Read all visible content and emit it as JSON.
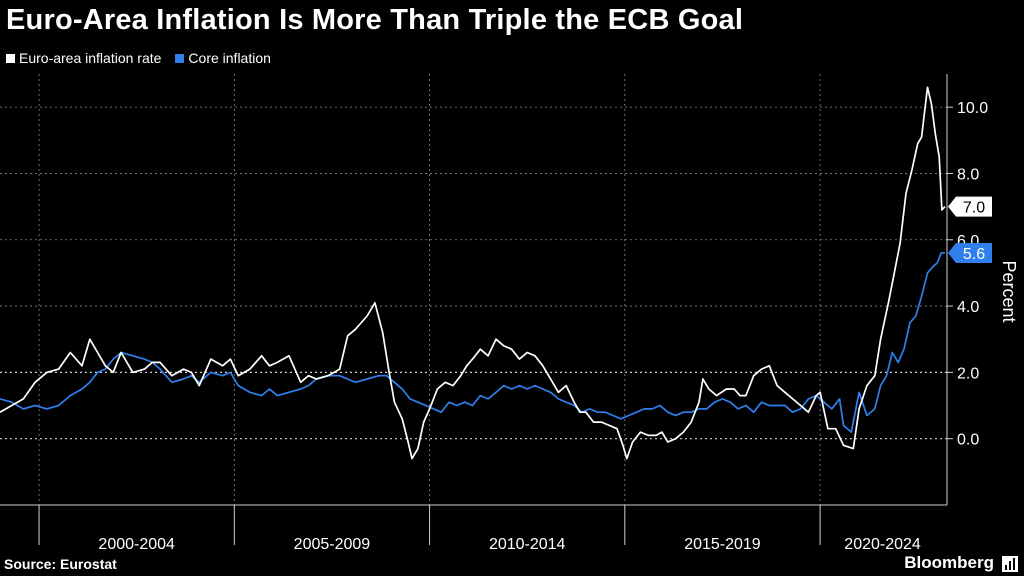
{
  "title": "Euro-Area Inflation Is More Than Triple the ECB Goal",
  "source": "Source: Eurostat",
  "brand": "Bloomberg",
  "colors": {
    "headline": "#ffffff",
    "core": "#2f80ed",
    "grid": "#8a8a8a",
    "axis": "#d0d0d0"
  },
  "chart_data": {
    "type": "line",
    "title": "Euro-Area Inflation Is More Than Triple the ECB Goal",
    "ylabel": "Percent",
    "xlabel": "",
    "xlim": [
      1999.0,
      2023.25
    ],
    "ylim": [
      -2.0,
      11.0
    ],
    "y_ticks": [
      0.0,
      2.0,
      4.0,
      6.0,
      8.0,
      10.0
    ],
    "y_tick_labels": [
      "0.0",
      "2.0",
      "4.0",
      "6.0",
      "8.0",
      "10.0"
    ],
    "x_boundaries": [
      2000,
      2005,
      2010,
      2015,
      2020
    ],
    "x_period_labels": [
      {
        "label": "2000-2004",
        "center": 2002.5
      },
      {
        "label": "2005-2009",
        "center": 2007.5
      },
      {
        "label": "2010-2014",
        "center": 2012.5
      },
      {
        "label": "2015-2019",
        "center": 2017.5
      },
      {
        "label": "2020-2024",
        "center": 2021.6
      }
    ],
    "series": [
      {
        "name": "Euro-area inflation rate",
        "last_label": "7.0",
        "points": [
          [
            1999.0,
            0.8
          ],
          [
            1999.3,
            1.0
          ],
          [
            1999.6,
            1.2
          ],
          [
            1999.9,
            1.7
          ],
          [
            2000.2,
            2.0
          ],
          [
            2000.5,
            2.1
          ],
          [
            2000.8,
            2.6
          ],
          [
            2001.1,
            2.2
          ],
          [
            2001.3,
            3.0
          ],
          [
            2001.5,
            2.6
          ],
          [
            2001.7,
            2.2
          ],
          [
            2001.9,
            2.0
          ],
          [
            2002.1,
            2.6
          ],
          [
            2002.4,
            2.0
          ],
          [
            2002.7,
            2.1
          ],
          [
            2002.9,
            2.3
          ],
          [
            2003.1,
            2.3
          ],
          [
            2003.4,
            1.9
          ],
          [
            2003.7,
            2.1
          ],
          [
            2003.9,
            2.0
          ],
          [
            2004.1,
            1.6
          ],
          [
            2004.4,
            2.4
          ],
          [
            2004.7,
            2.2
          ],
          [
            2004.9,
            2.4
          ],
          [
            2005.1,
            1.9
          ],
          [
            2005.4,
            2.1
          ],
          [
            2005.7,
            2.5
          ],
          [
            2005.9,
            2.2
          ],
          [
            2006.1,
            2.3
          ],
          [
            2006.4,
            2.5
          ],
          [
            2006.7,
            1.7
          ],
          [
            2006.9,
            1.9
          ],
          [
            2007.1,
            1.8
          ],
          [
            2007.4,
            1.9
          ],
          [
            2007.7,
            2.1
          ],
          [
            2007.9,
            3.1
          ],
          [
            2008.1,
            3.3
          ],
          [
            2008.4,
            3.7
          ],
          [
            2008.6,
            4.1
          ],
          [
            2008.8,
            3.2
          ],
          [
            2008.95,
            2.1
          ],
          [
            2009.1,
            1.1
          ],
          [
            2009.3,
            0.6
          ],
          [
            2009.45,
            -0.1
          ],
          [
            2009.55,
            -0.6
          ],
          [
            2009.7,
            -0.3
          ],
          [
            2009.85,
            0.5
          ],
          [
            2010.0,
            0.9
          ],
          [
            2010.2,
            1.5
          ],
          [
            2010.4,
            1.7
          ],
          [
            2010.6,
            1.6
          ],
          [
            2010.8,
            1.9
          ],
          [
            2010.95,
            2.2
          ],
          [
            2011.1,
            2.4
          ],
          [
            2011.3,
            2.7
          ],
          [
            2011.5,
            2.5
          ],
          [
            2011.7,
            3.0
          ],
          [
            2011.9,
            2.8
          ],
          [
            2012.1,
            2.7
          ],
          [
            2012.3,
            2.4
          ],
          [
            2012.5,
            2.6
          ],
          [
            2012.7,
            2.5
          ],
          [
            2012.9,
            2.2
          ],
          [
            2013.1,
            1.8
          ],
          [
            2013.3,
            1.4
          ],
          [
            2013.5,
            1.6
          ],
          [
            2013.7,
            1.1
          ],
          [
            2013.85,
            0.8
          ],
          [
            2014.0,
            0.8
          ],
          [
            2014.2,
            0.5
          ],
          [
            2014.4,
            0.5
          ],
          [
            2014.6,
            0.4
          ],
          [
            2014.8,
            0.3
          ],
          [
            2014.95,
            -0.2
          ],
          [
            2015.05,
            -0.6
          ],
          [
            2015.2,
            -0.1
          ],
          [
            2015.4,
            0.2
          ],
          [
            2015.6,
            0.1
          ],
          [
            2015.8,
            0.1
          ],
          [
            2015.95,
            0.2
          ],
          [
            2016.1,
            -0.1
          ],
          [
            2016.3,
            0.0
          ],
          [
            2016.5,
            0.2
          ],
          [
            2016.7,
            0.5
          ],
          [
            2016.9,
            1.1
          ],
          [
            2017.0,
            1.8
          ],
          [
            2017.15,
            1.5
          ],
          [
            2017.35,
            1.3
          ],
          [
            2017.6,
            1.5
          ],
          [
            2017.8,
            1.5
          ],
          [
            2017.95,
            1.3
          ],
          [
            2018.1,
            1.3
          ],
          [
            2018.3,
            1.9
          ],
          [
            2018.5,
            2.1
          ],
          [
            2018.7,
            2.2
          ],
          [
            2018.9,
            1.6
          ],
          [
            2019.1,
            1.4
          ],
          [
            2019.3,
            1.2
          ],
          [
            2019.5,
            1.0
          ],
          [
            2019.7,
            0.8
          ],
          [
            2019.9,
            1.3
          ],
          [
            2020.0,
            1.4
          ],
          [
            2020.2,
            0.3
          ],
          [
            2020.4,
            0.3
          ],
          [
            2020.6,
            -0.2
          ],
          [
            2020.85,
            -0.3
          ],
          [
            2021.0,
            0.9
          ],
          [
            2021.2,
            1.6
          ],
          [
            2021.4,
            1.9
          ],
          [
            2021.55,
            3.0
          ],
          [
            2021.75,
            4.1
          ],
          [
            2021.9,
            5.0
          ],
          [
            2022.05,
            5.9
          ],
          [
            2022.2,
            7.4
          ],
          [
            2022.35,
            8.1
          ],
          [
            2022.5,
            8.9
          ],
          [
            2022.6,
            9.1
          ],
          [
            2022.75,
            10.6
          ],
          [
            2022.85,
            10.1
          ],
          [
            2022.95,
            9.2
          ],
          [
            2023.05,
            8.5
          ],
          [
            2023.12,
            6.9
          ],
          [
            2023.2,
            7.0
          ]
        ]
      },
      {
        "name": "Core inflation",
        "last_label": "5.6",
        "points": [
          [
            1999.0,
            1.2
          ],
          [
            1999.3,
            1.1
          ],
          [
            1999.6,
            0.9
          ],
          [
            1999.9,
            1.0
          ],
          [
            2000.2,
            0.9
          ],
          [
            2000.5,
            1.0
          ],
          [
            2000.8,
            1.3
          ],
          [
            2001.1,
            1.5
          ],
          [
            2001.3,
            1.7
          ],
          [
            2001.5,
            2.0
          ],
          [
            2001.7,
            2.1
          ],
          [
            2001.9,
            2.4
          ],
          [
            2002.1,
            2.6
          ],
          [
            2002.4,
            2.5
          ],
          [
            2002.7,
            2.4
          ],
          [
            2002.9,
            2.3
          ],
          [
            2003.1,
            2.1
          ],
          [
            2003.4,
            1.7
          ],
          [
            2003.7,
            1.8
          ],
          [
            2003.9,
            1.9
          ],
          [
            2004.1,
            1.7
          ],
          [
            2004.4,
            2.0
          ],
          [
            2004.7,
            1.9
          ],
          [
            2004.9,
            2.0
          ],
          [
            2005.1,
            1.6
          ],
          [
            2005.4,
            1.4
          ],
          [
            2005.7,
            1.3
          ],
          [
            2005.9,
            1.5
          ],
          [
            2006.1,
            1.3
          ],
          [
            2006.4,
            1.4
          ],
          [
            2006.7,
            1.5
          ],
          [
            2006.9,
            1.6
          ],
          [
            2007.1,
            1.8
          ],
          [
            2007.4,
            1.9
          ],
          [
            2007.7,
            1.9
          ],
          [
            2007.9,
            1.8
          ],
          [
            2008.1,
            1.7
          ],
          [
            2008.4,
            1.8
          ],
          [
            2008.7,
            1.9
          ],
          [
            2008.9,
            1.9
          ],
          [
            2009.1,
            1.7
          ],
          [
            2009.3,
            1.5
          ],
          [
            2009.5,
            1.2
          ],
          [
            2009.7,
            1.1
          ],
          [
            2009.9,
            1.0
          ],
          [
            2010.1,
            0.9
          ],
          [
            2010.3,
            0.8
          ],
          [
            2010.5,
            1.1
          ],
          [
            2010.7,
            1.0
          ],
          [
            2010.9,
            1.1
          ],
          [
            2011.1,
            1.0
          ],
          [
            2011.3,
            1.3
          ],
          [
            2011.5,
            1.2
          ],
          [
            2011.7,
            1.4
          ],
          [
            2011.9,
            1.6
          ],
          [
            2012.1,
            1.5
          ],
          [
            2012.3,
            1.6
          ],
          [
            2012.5,
            1.5
          ],
          [
            2012.7,
            1.6
          ],
          [
            2012.9,
            1.5
          ],
          [
            2013.1,
            1.4
          ],
          [
            2013.3,
            1.2
          ],
          [
            2013.5,
            1.1
          ],
          [
            2013.7,
            1.0
          ],
          [
            2013.9,
            0.8
          ],
          [
            2014.1,
            0.9
          ],
          [
            2014.3,
            0.8
          ],
          [
            2014.5,
            0.8
          ],
          [
            2014.7,
            0.7
          ],
          [
            2014.9,
            0.6
          ],
          [
            2015.1,
            0.7
          ],
          [
            2015.3,
            0.8
          ],
          [
            2015.5,
            0.9
          ],
          [
            2015.7,
            0.9
          ],
          [
            2015.9,
            1.0
          ],
          [
            2016.1,
            0.8
          ],
          [
            2016.3,
            0.7
          ],
          [
            2016.5,
            0.8
          ],
          [
            2016.7,
            0.8
          ],
          [
            2016.9,
            0.9
          ],
          [
            2017.1,
            0.9
          ],
          [
            2017.3,
            1.1
          ],
          [
            2017.5,
            1.2
          ],
          [
            2017.7,
            1.1
          ],
          [
            2017.9,
            0.9
          ],
          [
            2018.1,
            1.0
          ],
          [
            2018.3,
            0.8
          ],
          [
            2018.5,
            1.1
          ],
          [
            2018.7,
            1.0
          ],
          [
            2018.9,
            1.0
          ],
          [
            2019.1,
            1.0
          ],
          [
            2019.3,
            0.8
          ],
          [
            2019.5,
            0.9
          ],
          [
            2019.7,
            1.2
          ],
          [
            2019.9,
            1.3
          ],
          [
            2020.1,
            1.1
          ],
          [
            2020.3,
            0.9
          ],
          [
            2020.5,
            1.2
          ],
          [
            2020.6,
            0.4
          ],
          [
            2020.8,
            0.2
          ],
          [
            2021.0,
            1.4
          ],
          [
            2021.2,
            0.7
          ],
          [
            2021.4,
            0.9
          ],
          [
            2021.55,
            1.6
          ],
          [
            2021.7,
            1.9
          ],
          [
            2021.85,
            2.6
          ],
          [
            2022.0,
            2.3
          ],
          [
            2022.15,
            2.7
          ],
          [
            2022.3,
            3.5
          ],
          [
            2022.45,
            3.7
          ],
          [
            2022.6,
            4.3
          ],
          [
            2022.75,
            5.0
          ],
          [
            2022.9,
            5.2
          ],
          [
            2023.0,
            5.3
          ],
          [
            2023.1,
            5.6
          ],
          [
            2023.2,
            5.6
          ]
        ]
      }
    ]
  }
}
